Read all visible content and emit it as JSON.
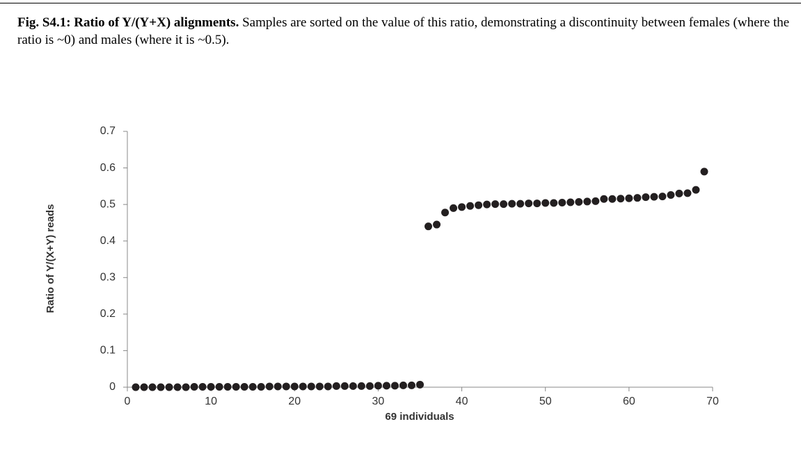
{
  "caption_title": "Fig. S4.1: Ratio of Y/(Y+X) alignments.",
  "caption_text": "Samples are sorted on the value of this ratio, demonstrating a discontinuity between females (where the ratio is  ~0) and males (where it is ~0.5).",
  "chart_data": {
    "type": "scatter",
    "xlabel": "69 individuals",
    "ylabel": "Ratio of Y/(X+Y) reads",
    "color": "#231f20",
    "x": [
      1,
      2,
      3,
      4,
      5,
      6,
      7,
      8,
      9,
      10,
      11,
      12,
      13,
      14,
      15,
      16,
      17,
      18,
      19,
      20,
      21,
      22,
      23,
      24,
      25,
      26,
      27,
      28,
      29,
      30,
      31,
      32,
      33,
      34,
      35,
      36,
      37,
      38,
      39,
      40,
      41,
      42,
      43,
      44,
      45,
      46,
      47,
      48,
      49,
      50,
      51,
      52,
      53,
      54,
      55,
      56,
      57,
      58,
      59,
      60,
      61,
      62,
      63,
      64,
      65,
      66,
      67,
      68,
      69
    ],
    "values": [
      0,
      0,
      0,
      0,
      0,
      0,
      0,
      0.001,
      0.001,
      0.001,
      0.001,
      0.001,
      0.001,
      0.001,
      0.001,
      0.001,
      0.002,
      0.002,
      0.002,
      0.002,
      0.002,
      0.002,
      0.002,
      0.002,
      0.003,
      0.003,
      0.003,
      0.003,
      0.003,
      0.004,
      0.004,
      0.004,
      0.005,
      0.005,
      0.007,
      0.44,
      0.445,
      0.478,
      0.49,
      0.493,
      0.496,
      0.498,
      0.5,
      0.501,
      0.501,
      0.502,
      0.502,
      0.503,
      0.503,
      0.504,
      0.504,
      0.505,
      0.506,
      0.507,
      0.508,
      0.509,
      0.515,
      0.515,
      0.516,
      0.517,
      0.518,
      0.52,
      0.521,
      0.522,
      0.526,
      0.53,
      0.531,
      0.54,
      0.59
    ],
    "xlim": [
      0,
      70
    ],
    "xticks": [
      0,
      10,
      20,
      30,
      40,
      50,
      60,
      70
    ],
    "ylim": [
      0,
      0.7
    ],
    "yticks": [
      0,
      0.1,
      0.2,
      0.3,
      0.4,
      0.5,
      0.6,
      0.7
    ]
  }
}
